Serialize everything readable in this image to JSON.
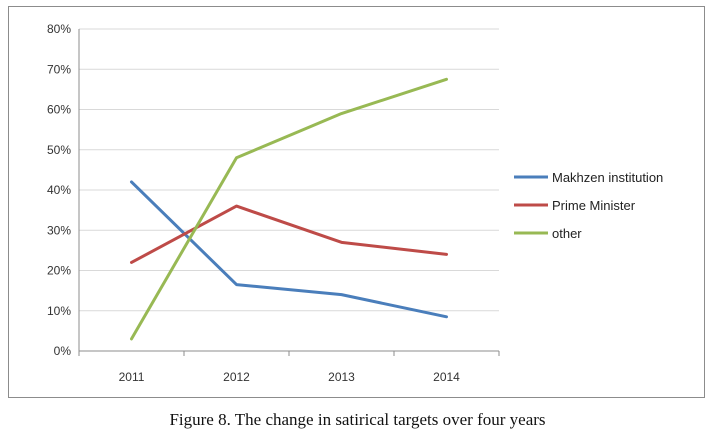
{
  "chart_data": {
    "type": "line",
    "categories": [
      "2011",
      "2012",
      "2013",
      "2014"
    ],
    "yticks": [
      "0%",
      "10%",
      "20%",
      "30%",
      "40%",
      "50%",
      "60%",
      "70%",
      "80%"
    ],
    "ylim": [
      0,
      80
    ],
    "grid": true,
    "legend_position": "right",
    "series": [
      {
        "name": "Makhzen institution",
        "color": "#4a7ebb",
        "values": [
          42,
          16.5,
          14,
          8.5
        ]
      },
      {
        "name": "Prime Minister",
        "color": "#be4b48",
        "values": [
          22,
          36,
          27,
          24
        ]
      },
      {
        "name": "other",
        "color": "#98b954",
        "values": [
          3,
          48,
          59,
          67.5
        ]
      }
    ]
  },
  "caption": "Figure 8. The change in satirical targets over four years"
}
